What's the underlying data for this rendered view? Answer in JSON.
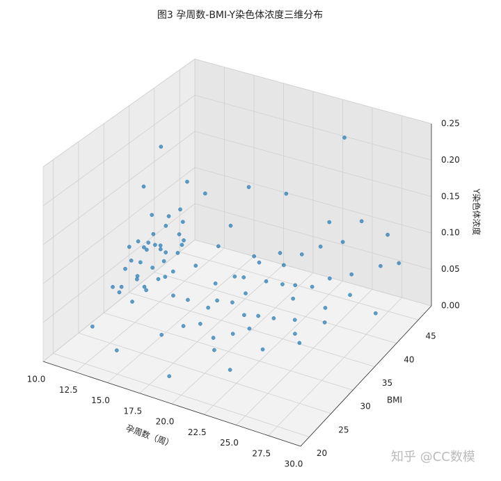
{
  "chart_data": {
    "type": "scatter3d",
    "title": "图3 孕周数-BMI-Y染色体浓度三维分布",
    "x_label": "孕周数（周）",
    "y_label": "BMI",
    "z_label": "Y染色体浓度",
    "color": "#1f77b4",
    "xlim": [
      10,
      30
    ],
    "ylim": [
      18,
      48
    ],
    "zlim": [
      0,
      0.25
    ],
    "xticks": [
      {
        "value": 10,
        "label": "10.0"
      },
      12.5,
      {
        "value": 15,
        "label": "15.0"
      },
      17.5,
      {
        "value": 20,
        "label": "20.0"
      },
      22.5,
      {
        "value": 25,
        "label": "25.0"
      },
      27.5,
      {
        "value": 30,
        "label": "30.0"
      }
    ],
    "yticks": [
      20,
      25,
      30,
      35,
      40,
      45
    ],
    "zticks": [
      {
        "value": 0,
        "label": "0.00"
      },
      {
        "value": 0.05,
        "label": "0.05"
      },
      {
        "value": 0.1,
        "label": "0.10"
      },
      {
        "value": 0.15,
        "label": "0.15"
      },
      {
        "value": 0.2,
        "label": "0.20"
      },
      {
        "value": 0.25,
        "label": "0.25"
      }
    ],
    "grid": true,
    "points": [
      [
        11.2,
        32.5,
        0.062
      ],
      [
        11.8,
        34.1,
        0.071
      ],
      [
        12.3,
        31.0,
        0.055
      ],
      [
        12.6,
        33.8,
        0.083
      ],
      [
        12.9,
        35.2,
        0.067
      ],
      [
        13.1,
        30.4,
        0.048
      ],
      [
        13.4,
        32.9,
        0.091
      ],
      [
        13.7,
        36.5,
        0.074
      ],
      [
        11.5,
        29.8,
        0.043
      ],
      [
        12.1,
        37.2,
        0.088
      ],
      [
        12.4,
        30.9,
        0.102
      ],
      [
        12.8,
        28.7,
        0.036
      ],
      [
        13.0,
        34.6,
        0.059
      ],
      [
        13.3,
        31.7,
        0.112
      ],
      [
        13.6,
        29.5,
        0.051
      ],
      [
        11.9,
        33.3,
        0.079
      ],
      [
        12.2,
        35.9,
        0.064
      ],
      [
        12.7,
        32.2,
        0.095
      ],
      [
        13.2,
        38.1,
        0.069
      ],
      [
        13.5,
        33.6,
        0.046
      ],
      [
        11.4,
        31.6,
        0.086
      ],
      [
        12.0,
        29.3,
        0.072
      ],
      [
        12.5,
        36.8,
        0.105
      ],
      [
        13.9,
        31.2,
        0.058
      ],
      [
        14.2,
        34.4,
        0.077
      ],
      [
        11.7,
        35.5,
        0.039
      ],
      [
        12.9,
        30.1,
        0.081
      ],
      [
        13.8,
        35.7,
        0.093
      ],
      [
        12.3,
        33.9,
        0.121
      ],
      [
        13.1,
        28.9,
        0.066
      ],
      [
        11.0,
        30.6,
        0.029
      ],
      [
        14.5,
        32.7,
        0.063
      ],
      [
        12.6,
        39.4,
        0.084
      ],
      [
        13.4,
        36.9,
        0.118
      ],
      [
        11.6,
        27.8,
        0.054
      ],
      [
        16.2,
        31.4,
        0.041
      ],
      [
        17.5,
        33.8,
        0.056
      ],
      [
        18.3,
        30.2,
        0.048
      ],
      [
        19.1,
        35.6,
        0.062
      ],
      [
        20.4,
        32.3,
        0.037
      ],
      [
        21.2,
        34.9,
        0.071
      ],
      [
        22.1,
        30.8,
        0.053
      ],
      [
        23.0,
        36.4,
        0.066
      ],
      [
        24.2,
        33.1,
        0.045
      ],
      [
        25.3,
        37.8,
        0.078
      ],
      [
        16.8,
        36.2,
        0.089
      ],
      [
        18.9,
        38.3,
        0.074
      ],
      [
        20.7,
        29.1,
        0.032
      ],
      [
        22.6,
        38.9,
        0.091
      ],
      [
        24.8,
        31.5,
        0.039
      ],
      [
        15.7,
        34.3,
        0.068
      ],
      [
        17.9,
        29.6,
        0.028
      ],
      [
        19.6,
        31.9,
        0.052
      ],
      [
        21.8,
        37.1,
        0.083
      ],
      [
        23.5,
        34.6,
        0.061
      ],
      [
        25.9,
        35.2,
        0.057
      ],
      [
        16.5,
        39.5,
        0.097
      ],
      [
        18.1,
        32.6,
        0.043
      ],
      [
        19.9,
        36.8,
        0.079
      ],
      [
        21.5,
        30.5,
        0.035
      ],
      [
        23.8,
        39.8,
        0.102
      ],
      [
        26.4,
        33.7,
        0.049
      ],
      [
        17.2,
        27.9,
        0.031
      ],
      [
        20.1,
        33.4,
        0.058
      ],
      [
        22.9,
        32.0,
        0.047
      ],
      [
        24.5,
        36.1,
        0.073
      ],
      [
        26.8,
        38.6,
        0.086
      ],
      [
        15.3,
        30.7,
        0.046
      ],
      [
        18.6,
        35.0,
        0.064
      ],
      [
        21.0,
        38.4,
        0.088
      ],
      [
        23.2,
        28.8,
        0.026
      ],
      [
        25.6,
        30.3,
        0.038
      ],
      [
        27.3,
        36.9,
        0.071
      ],
      [
        19.4,
        28.4,
        0.024
      ],
      [
        22.3,
        35.5,
        0.069
      ],
      [
        13.0,
        34.0,
        0.215
      ],
      [
        12.0,
        33.0,
        0.162
      ],
      [
        15.2,
        37.5,
        0.145
      ],
      [
        24.0,
        44.5,
        0.224
      ],
      [
        20.5,
        41.0,
        0.151
      ],
      [
        17.0,
        42.0,
        0.138
      ],
      [
        26.0,
        43.0,
        0.128
      ],
      [
        28.5,
        40.5,
        0.094
      ],
      [
        27.8,
        44.0,
        0.112
      ],
      [
        11.3,
        24.5,
        0.018
      ],
      [
        14.0,
        22.5,
        0.012
      ],
      [
        18.5,
        21.5,
        0.008
      ],
      [
        22.0,
        25.0,
        0.015
      ],
      [
        28.0,
        46.0,
        0.062
      ],
      [
        25.0,
        41.5,
        0.104
      ],
      [
        29.0,
        38.0,
        0.048
      ],
      [
        16.0,
        26.5,
        0.021
      ],
      [
        20.0,
        27.0,
        0.019
      ],
      [
        12.5,
        40.5,
        0.132
      ],
      [
        23.5,
        42.5,
        0.118
      ]
    ]
  },
  "watermark": "知乎 @CC数模"
}
